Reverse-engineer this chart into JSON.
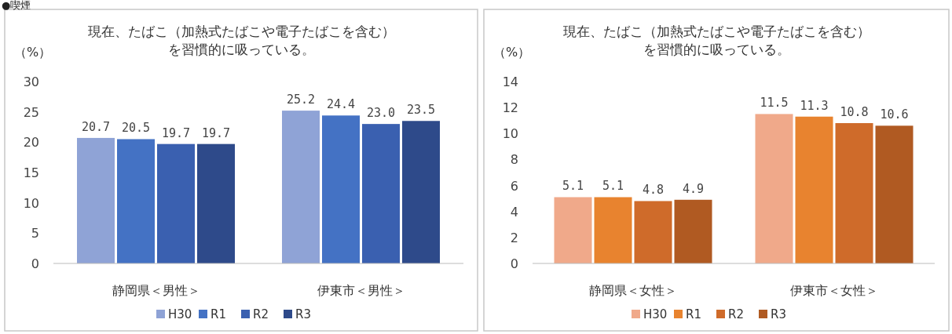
{
  "chart_data": [
    {
      "type": "bar",
      "title": "現在、たばこ（加熱式たばこや電子たばこを含む）を習慣的に吸っている。",
      "ylabel": "（%）",
      "annotations": [
        "●喫煙"
      ],
      "categories": [
        "静岡県＜男性＞",
        "伊東市＜男性＞"
      ],
      "series": [
        {
          "name": "H30",
          "color": "#8fa3d6",
          "values": [
            20.7,
            25.2
          ],
          "value_labels": [
            "20.7",
            "25.2"
          ]
        },
        {
          "name": "R1",
          "color": "#4472c4",
          "values": [
            20.5,
            24.4
          ],
          "value_labels": [
            "20.5",
            "24.4"
          ]
        },
        {
          "name": "R2",
          "color": "#3a60b0",
          "values": [
            19.7,
            23.0
          ],
          "value_labels": [
            "19.7",
            "23.0"
          ]
        },
        {
          "name": "R3",
          "color": "#2e4a8a",
          "values": [
            19.7,
            23.5
          ],
          "value_labels": [
            "19.7",
            "23.5"
          ]
        }
      ],
      "ylim": [
        0,
        30
      ],
      "yticks": [
        0,
        5,
        10,
        15,
        20,
        25,
        30
      ],
      "legend": "bottom"
    },
    {
      "type": "bar",
      "title": "現在、たばこ（加熱式たばこや電子たばこを含む）を習慣的に吸っている。",
      "ylabel": "（%）",
      "categories": [
        "静岡県＜女性＞",
        "伊東市＜女性＞"
      ],
      "series": [
        {
          "name": "H30",
          "color": "#f0a98a",
          "values": [
            5.1,
            11.5
          ],
          "value_labels": [
            "5.1",
            "11.5"
          ]
        },
        {
          "name": "R1",
          "color": "#e8832f",
          "values": [
            5.1,
            11.3
          ],
          "value_labels": [
            "5.1",
            "11.3"
          ]
        },
        {
          "name": "R2",
          "color": "#cf6b2a",
          "values": [
            4.8,
            10.8
          ],
          "value_labels": [
            "4.8",
            "10.8"
          ]
        },
        {
          "name": "R3",
          "color": "#b05a22",
          "values": [
            4.9,
            10.6
          ],
          "value_labels": [
            "4.9",
            "10.6"
          ]
        }
      ],
      "ylim": [
        0,
        14
      ],
      "yticks": [
        0,
        2,
        4,
        6,
        8,
        10,
        12,
        14
      ],
      "legend": "bottom"
    }
  ]
}
